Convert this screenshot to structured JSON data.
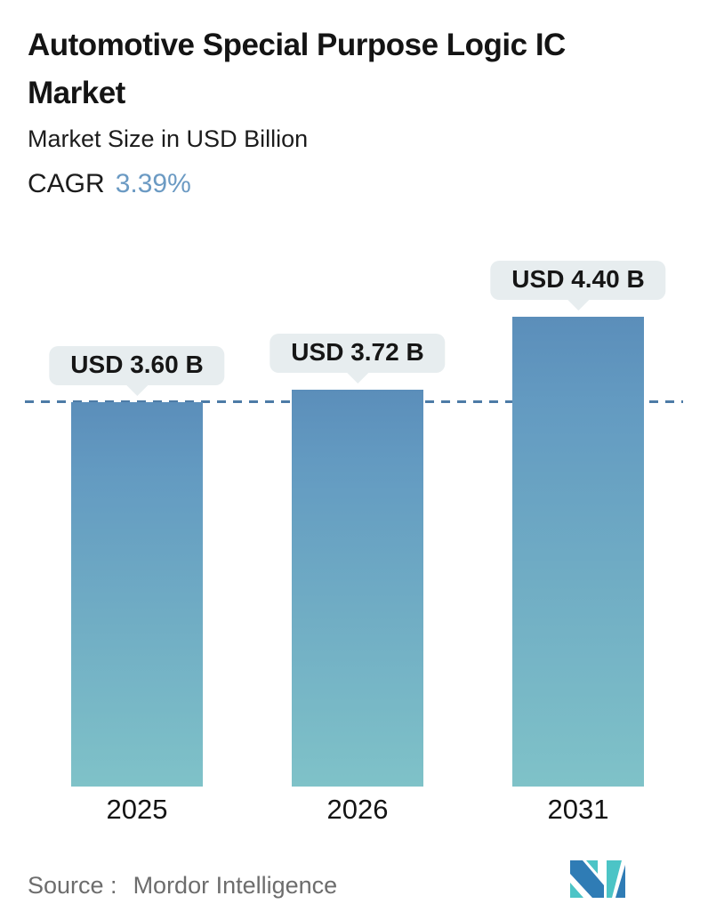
{
  "header": {
    "title_line1": "Automotive Special Purpose Logic IC",
    "title_line2": "Market",
    "subtitle": "Market Size in USD Billion",
    "cagr_label": "CAGR",
    "cagr_value": "3.39%"
  },
  "chart_data": {
    "type": "bar",
    "title": "Automotive Special Purpose Logic IC Market",
    "ylabel": "Market Size in USD Billion",
    "categories": [
      "2025",
      "2026",
      "2031"
    ],
    "values": [
      3.6,
      3.72,
      4.4
    ],
    "value_labels": [
      "USD 3.60 B",
      "USD 3.72 B",
      "USD 4.40 B"
    ],
    "cagr_percent": "3.39%",
    "ylim": [
      0,
      4.4
    ],
    "grid": false,
    "legend": "none",
    "reference_line": {
      "style": "dashed",
      "at_value": 3.6,
      "color": "#4d7ba6"
    },
    "bar_gradient_top": "#5b8eba",
    "bar_gradient_bottom": "#7fc2c8",
    "callout_background": "#e7edef"
  },
  "footer": {
    "source_label": "Source :",
    "source_value": "Mordor Intelligence"
  },
  "colors": {
    "accent_blue_text": "#6b9ac3",
    "title_text": "#141414",
    "source_text": "#6d6d6d",
    "logo_blue": "#2f7cb5",
    "logo_teal": "#4cc4c6"
  }
}
